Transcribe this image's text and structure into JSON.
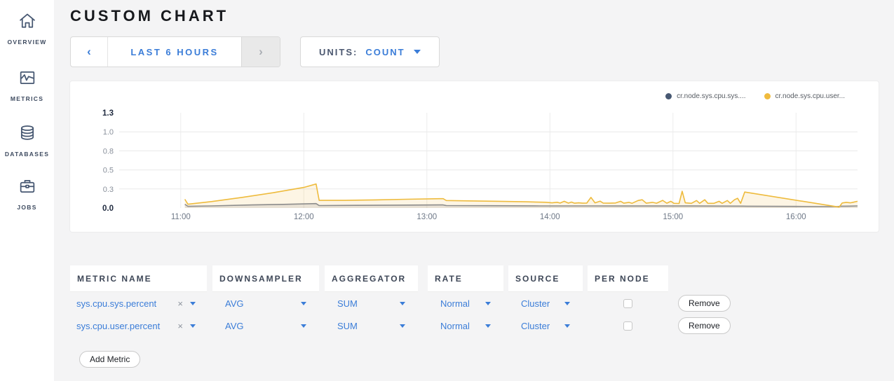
{
  "sidebar": {
    "items": [
      {
        "label": "OVERVIEW",
        "icon": "home-icon"
      },
      {
        "label": "METRICS",
        "icon": "metrics-icon"
      },
      {
        "label": "DATABASES",
        "icon": "database-icon"
      },
      {
        "label": "JOBS",
        "icon": "briefcase-icon"
      }
    ]
  },
  "header": {
    "title": "CUSTOM CHART"
  },
  "time_picker": {
    "prev": "‹",
    "label": "LAST 6 HOURS",
    "next": "›"
  },
  "units": {
    "label": "UNITS:",
    "value": "COUNT"
  },
  "chart_data": {
    "type": "line",
    "title": "",
    "xlabel": "",
    "ylabel": "",
    "x_domain_minutes": [
      30,
      390
    ],
    "y_domain": [
      0,
      1.25
    ],
    "grid": true,
    "legend_position": "top-right",
    "yticks": [
      {
        "label": "1.3",
        "value": 1.25,
        "bold": true
      },
      {
        "label": "1.0",
        "value": 1.0,
        "bold": false
      },
      {
        "label": "0.8",
        "value": 0.75,
        "bold": false
      },
      {
        "label": "0.5",
        "value": 0.5,
        "bold": false
      },
      {
        "label": "0.3",
        "value": 0.25,
        "bold": false
      },
      {
        "label": "0.0",
        "value": 0.0,
        "bold": true
      }
    ],
    "xticks": [
      {
        "label": "11:00",
        "minutes": 60
      },
      {
        "label": "12:00",
        "minutes": 120
      },
      {
        "label": "13:00",
        "minutes": 180
      },
      {
        "label": "14:00",
        "minutes": 240
      },
      {
        "label": "15:00",
        "minutes": 300
      },
      {
        "label": "16:00",
        "minutes": 360
      }
    ],
    "legend": [
      {
        "label": "cr.node.sys.cpu.sys....",
        "dot_color": "#475872"
      },
      {
        "label": "cr.node.sys.cpu.user...",
        "dot_color": "#f0bb3d"
      }
    ],
    "series": [
      {
        "name": "cr.node.sys.cpu.sys.percent",
        "line_color": "#8c8c8c",
        "fill_color": "rgba(140,140,140,0.18)",
        "points": [
          [
            62,
            0.05
          ],
          [
            63.5,
            0.022
          ],
          [
            75,
            0.028
          ],
          [
            95,
            0.04
          ],
          [
            110,
            0.048
          ],
          [
            126,
            0.058
          ],
          [
            127.5,
            0.032
          ],
          [
            145,
            0.035
          ],
          [
            165,
            0.038
          ],
          [
            186,
            0.04
          ],
          [
            188,
            0.04
          ],
          [
            189.5,
            0.032
          ],
          [
            210,
            0.03
          ],
          [
            235,
            0.028
          ],
          [
            260,
            0.028
          ],
          [
            285,
            0.027
          ],
          [
            310,
            0.027
          ],
          [
            334,
            0.025
          ],
          [
            336,
            0.024
          ],
          [
            360,
            0.021
          ],
          [
            380,
            0.018
          ],
          [
            382,
            0.024
          ],
          [
            386,
            0.025
          ],
          [
            390,
            0.028
          ]
        ]
      },
      {
        "name": "cr.node.sys.cpu.user.percent",
        "line_color": "#eebb3d",
        "fill_color": "rgba(238,187,61,0.14)",
        "points": [
          [
            62,
            0.115
          ],
          [
            63.5,
            0.05
          ],
          [
            75,
            0.085
          ],
          [
            90,
            0.14
          ],
          [
            105,
            0.2
          ],
          [
            120,
            0.27
          ],
          [
            126,
            0.315
          ],
          [
            127.5,
            0.1
          ],
          [
            140,
            0.1
          ],
          [
            155,
            0.107
          ],
          [
            170,
            0.115
          ],
          [
            186,
            0.122
          ],
          [
            188,
            0.122
          ],
          [
            189.5,
            0.098
          ],
          [
            200,
            0.094
          ],
          [
            215,
            0.088
          ],
          [
            228,
            0.082
          ],
          [
            238,
            0.075
          ],
          [
            241,
            0.068
          ],
          [
            243.5,
            0.075
          ],
          [
            245,
            0.065
          ],
          [
            247,
            0.088
          ],
          [
            249,
            0.064
          ],
          [
            250.5,
            0.078
          ],
          [
            252,
            0.063
          ],
          [
            254,
            0.068
          ],
          [
            256,
            0.063
          ],
          [
            258,
            0.065
          ],
          [
            260,
            0.14
          ],
          [
            262,
            0.068
          ],
          [
            264.5,
            0.09
          ],
          [
            266,
            0.064
          ],
          [
            269,
            0.063
          ],
          [
            272,
            0.066
          ],
          [
            274.5,
            0.088
          ],
          [
            276,
            0.063
          ],
          [
            278.5,
            0.074
          ],
          [
            280,
            0.062
          ],
          [
            283,
            0.098
          ],
          [
            285,
            0.108
          ],
          [
            287,
            0.063
          ],
          [
            290,
            0.074
          ],
          [
            292,
            0.063
          ],
          [
            295,
            0.1
          ],
          [
            297,
            0.063
          ],
          [
            299,
            0.088
          ],
          [
            300.5,
            0.062
          ],
          [
            303,
            0.06
          ],
          [
            304.5,
            0.22
          ],
          [
            306,
            0.068
          ],
          [
            309,
            0.062
          ],
          [
            311.5,
            0.098
          ],
          [
            313,
            0.062
          ],
          [
            315.5,
            0.108
          ],
          [
            317,
            0.062
          ],
          [
            320,
            0.062
          ],
          [
            322.5,
            0.088
          ],
          [
            324,
            0.062
          ],
          [
            326.5,
            0.098
          ],
          [
            328,
            0.062
          ],
          [
            330,
            0.108
          ],
          [
            331.5,
            0.128
          ],
          [
            333,
            0.062
          ],
          [
            335,
            0.21
          ],
          [
            381,
            0.012
          ],
          [
            382.5,
            0.066
          ],
          [
            384.5,
            0.074
          ],
          [
            386.5,
            0.068
          ],
          [
            388,
            0.076
          ],
          [
            390,
            0.088
          ]
        ]
      }
    ]
  },
  "table": {
    "headers": [
      "METRIC NAME",
      "DOWNSAMPLER",
      "AGGREGATOR",
      "RATE",
      "SOURCE",
      "PER NODE"
    ],
    "clear_icon": "×",
    "remove_label": "Remove",
    "rows": [
      {
        "metric": "sys.cpu.sys.percent",
        "downsampler": "AVG",
        "aggregator": "SUM",
        "rate": "Normal",
        "source": "Cluster",
        "per_node": false
      },
      {
        "metric": "sys.cpu.user.percent",
        "downsampler": "AVG",
        "aggregator": "SUM",
        "rate": "Normal",
        "source": "Cluster",
        "per_node": false
      }
    ]
  },
  "add_metric_label": "Add Metric",
  "colors": {
    "accent_blue": "#3b7dd8",
    "slate": "#475872",
    "yellow_series": "#eebb3d",
    "gray_series": "#8c8c8c",
    "page_bg": "#f4f4f5",
    "card_bg": "#ffffff"
  }
}
